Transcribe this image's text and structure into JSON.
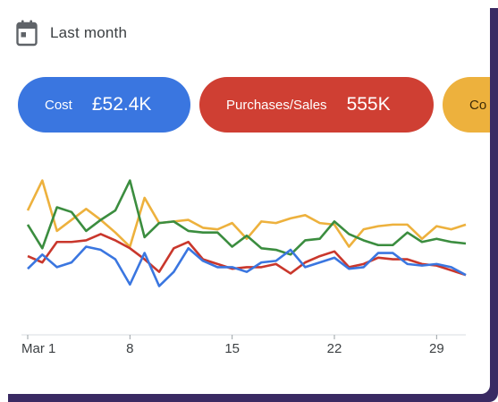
{
  "header": {
    "date_range": "Last month",
    "icon": "calendar-icon"
  },
  "metrics": [
    {
      "label": "Cost",
      "value": "£52.4K",
      "color": "#3a76e0"
    },
    {
      "label": "Purchases/Sales",
      "value": "555K",
      "color": "#cf3f33"
    },
    {
      "label": "Co",
      "value": "",
      "color": "#edb13d"
    }
  ],
  "chart_data": {
    "type": "line",
    "x": [
      1,
      2,
      3,
      4,
      5,
      6,
      7,
      8,
      9,
      10,
      11,
      12,
      13,
      14,
      15,
      16,
      17,
      18,
      19,
      20,
      21,
      22,
      23,
      24,
      25,
      26,
      27,
      28,
      29,
      30,
      31
    ],
    "xticks": [
      1,
      8,
      15,
      22,
      29
    ],
    "xtick_labels": [
      "Mar 1",
      "8",
      "15",
      "22",
      "29"
    ],
    "ylim": [
      0,
      100
    ],
    "grid": false,
    "series": [
      {
        "color": "#edb13d",
        "values": [
          71,
          90,
          58,
          65,
          72,
          65,
          57,
          48,
          79,
          63,
          64,
          65,
          60,
          59,
          63,
          53,
          64,
          63,
          66,
          68,
          63,
          62,
          48,
          59,
          61,
          62,
          62,
          53,
          61,
          59,
          62
        ]
      },
      {
        "color": "#3b8d3f",
        "values": [
          62,
          47,
          73,
          70,
          58,
          65,
          71,
          90,
          54,
          63,
          64,
          58,
          57,
          57,
          48,
          55,
          47,
          46,
          43,
          52,
          53,
          64,
          56,
          52,
          49,
          49,
          57,
          51,
          53,
          51,
          50
        ]
      },
      {
        "color": "#c9372c",
        "values": [
          42,
          38,
          51,
          51,
          52,
          56,
          52,
          47,
          40,
          32,
          47,
          51,
          40,
          37,
          34,
          35,
          35,
          37,
          31,
          38,
          42,
          45,
          35,
          37,
          41,
          40,
          40,
          37,
          36,
          33,
          30
        ]
      },
      {
        "color": "#3a76e0",
        "values": [
          34,
          43,
          35,
          38,
          48,
          46,
          40,
          24,
          44,
          23,
          32,
          47,
          39,
          35,
          35,
          32,
          38,
          39,
          46,
          35,
          38,
          41,
          34,
          35,
          44,
          44,
          37,
          36,
          37,
          35,
          30
        ]
      }
    ]
  }
}
